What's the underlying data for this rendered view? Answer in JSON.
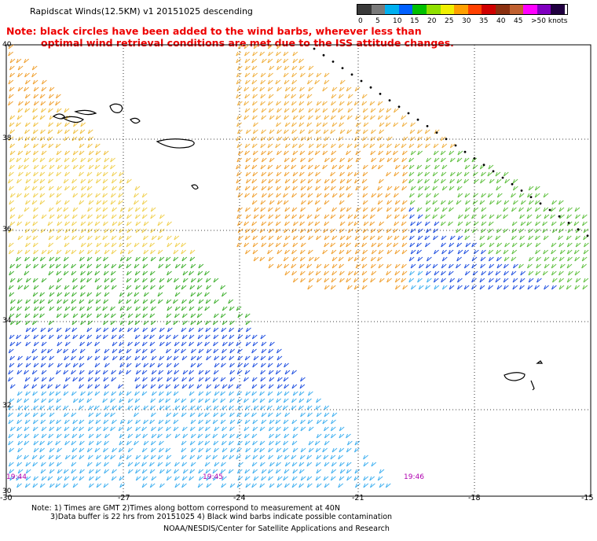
{
  "header": {
    "title": "Rapidscat Winds(12.5KM) v1 20151025 descending",
    "note_line1": "Note: black circles have been added to the wind barbs, wherever less than",
    "note_line2": "optimal wind retrieval conditions are met due to the ISS attitude changes."
  },
  "colorbar": {
    "unit": "knots",
    "colors": [
      "#3a3a3a",
      "#7a7a7a",
      "#00b0f0",
      "#0060ff",
      "#00c000",
      "#90e000",
      "#f0f000",
      "#ffa000",
      "#ff4000",
      "#d00000",
      "#8b3010",
      "#c06030",
      "#ff00ff",
      "#8000c0",
      "#200040"
    ],
    "labels": [
      "0",
      "5",
      "10",
      "15",
      "20",
      "25",
      "30",
      "35",
      "40",
      "45",
      ">50 knots"
    ]
  },
  "map": {
    "lat_labels": [
      "40",
      "38",
      "36",
      "34",
      "32",
      "30"
    ],
    "lon_labels": [
      "-30",
      "-27",
      "-24",
      "-21",
      "-18",
      "-15"
    ],
    "time_labels": [
      "19:44",
      "19:45",
      "19:46"
    ]
  },
  "footer": {
    "line1": "Note: 1) Times are GMT 2)Times along bottom correspond to measurement at 40N",
    "line2": "3)Data buffer is 22 hrs from 20151025 4) Black wind barbs indicate possible contamination",
    "line3": "NOAA/NESDIS/Center for Satellite Applications and Research"
  }
}
